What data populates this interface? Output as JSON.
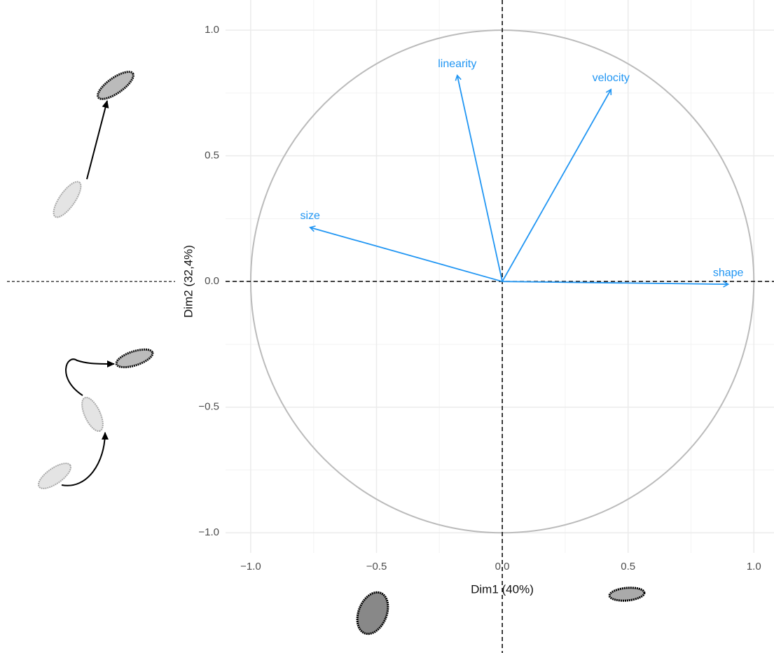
{
  "chart_data": {
    "type": "vector",
    "x_label": "Dim1 (40%)",
    "y_label": "Dim2 (32,4%)",
    "categories": [
      "size",
      "linearity",
      "velocity",
      "shape"
    ],
    "x": [
      -0.764,
      -0.179,
      0.432,
      0.898
    ],
    "values": [
      0.215,
      0.82,
      0.764,
      -0.011
    ],
    "color": "#2196f3",
    "xlim": [
      -1.1,
      1.08
    ],
    "ylim": [
      -1.08,
      1.12
    ],
    "xticks": [
      {
        "value": -1,
        "label": "−1.0"
      },
      {
        "value": -0.5,
        "label": "−0.5"
      },
      {
        "value": 0,
        "label": "0.0"
      },
      0.5,
      {
        "value": 1,
        "label": "1.0"
      }
    ],
    "yticks": [
      {
        "value": -1,
        "label": "−1.0"
      },
      {
        "value": -0.5,
        "label": "−0.5"
      },
      {
        "value": 0,
        "label": "0.0"
      },
      0.5,
      {
        "value": 1,
        "label": "1.0"
      }
    ],
    "minor_grid": [
      -0.75,
      -0.25,
      0.25,
      0.75
    ],
    "grid": true,
    "circle": {
      "radius": 1,
      "color": "#bbbbbb"
    },
    "reference_lines": {
      "x": 0,
      "y": 0
    }
  }
}
